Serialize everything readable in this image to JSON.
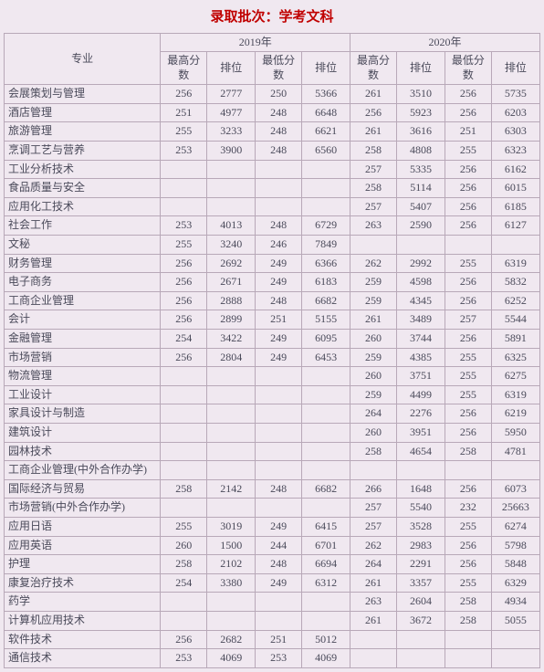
{
  "title": "录取批次：学考文科",
  "header": {
    "major": "专业",
    "year2019": "2019年",
    "year2020": "2020年",
    "max_score": "最高分数",
    "max_rank": "排位",
    "min_score": "最低分数",
    "min_rank": "排位"
  },
  "colors": {
    "title_color": "#c00000",
    "border_color": "#b8a8b8",
    "bg_color": "#f0e8f0",
    "text_color": "#4a4a5a"
  },
  "rows": [
    {
      "major": "会展策划与管理",
      "h19": "256",
      "r19h": "2777",
      "l19": "250",
      "r19l": "5366",
      "h20": "261",
      "r20h": "3510",
      "l20": "256",
      "r20l": "5735"
    },
    {
      "major": "酒店管理",
      "h19": "251",
      "r19h": "4977",
      "l19": "248",
      "r19l": "6648",
      "h20": "256",
      "r20h": "5923",
      "l20": "256",
      "r20l": "6203"
    },
    {
      "major": "旅游管理",
      "h19": "255",
      "r19h": "3233",
      "l19": "248",
      "r19l": "6621",
      "h20": "261",
      "r20h": "3616",
      "l20": "251",
      "r20l": "6303"
    },
    {
      "major": "烹调工艺与营养",
      "h19": "253",
      "r19h": "3900",
      "l19": "248",
      "r19l": "6560",
      "h20": "258",
      "r20h": "4808",
      "l20": "255",
      "r20l": "6323"
    },
    {
      "major": "工业分析技术",
      "h19": "",
      "r19h": "",
      "l19": "",
      "r19l": "",
      "h20": "257",
      "r20h": "5335",
      "l20": "256",
      "r20l": "6162"
    },
    {
      "major": "食品质量与安全",
      "h19": "",
      "r19h": "",
      "l19": "",
      "r19l": "",
      "h20": "258",
      "r20h": "5114",
      "l20": "256",
      "r20l": "6015"
    },
    {
      "major": "应用化工技术",
      "h19": "",
      "r19h": "",
      "l19": "",
      "r19l": "",
      "h20": "257",
      "r20h": "5407",
      "l20": "256",
      "r20l": "6185"
    },
    {
      "major": "社会工作",
      "h19": "253",
      "r19h": "4013",
      "l19": "248",
      "r19l": "6729",
      "h20": "263",
      "r20h": "2590",
      "l20": "256",
      "r20l": "6127"
    },
    {
      "major": "文秘",
      "h19": "255",
      "r19h": "3240",
      "l19": "246",
      "r19l": "7849",
      "h20": "",
      "r20h": "",
      "l20": "",
      "r20l": ""
    },
    {
      "major": "财务管理",
      "h19": "256",
      "r19h": "2692",
      "l19": "249",
      "r19l": "6366",
      "h20": "262",
      "r20h": "2992",
      "l20": "255",
      "r20l": "6319"
    },
    {
      "major": "电子商务",
      "h19": "256",
      "r19h": "2671",
      "l19": "249",
      "r19l": "6183",
      "h20": "259",
      "r20h": "4598",
      "l20": "256",
      "r20l": "5832"
    },
    {
      "major": "工商企业管理",
      "h19": "256",
      "r19h": "2888",
      "l19": "248",
      "r19l": "6682",
      "h20": "259",
      "r20h": "4345",
      "l20": "256",
      "r20l": "6252"
    },
    {
      "major": "会计",
      "h19": "256",
      "r19h": "2899",
      "l19": "251",
      "r19l": "5155",
      "h20": "261",
      "r20h": "3489",
      "l20": "257",
      "r20l": "5544"
    },
    {
      "major": "金融管理",
      "h19": "254",
      "r19h": "3422",
      "l19": "249",
      "r19l": "6095",
      "h20": "260",
      "r20h": "3744",
      "l20": "256",
      "r20l": "5891"
    },
    {
      "major": "市场营销",
      "h19": "256",
      "r19h": "2804",
      "l19": "249",
      "r19l": "6453",
      "h20": "259",
      "r20h": "4385",
      "l20": "255",
      "r20l": "6325"
    },
    {
      "major": "物流管理",
      "h19": "",
      "r19h": "",
      "l19": "",
      "r19l": "",
      "h20": "260",
      "r20h": "3751",
      "l20": "255",
      "r20l": "6275"
    },
    {
      "major": "工业设计",
      "h19": "",
      "r19h": "",
      "l19": "",
      "r19l": "",
      "h20": "259",
      "r20h": "4499",
      "l20": "255",
      "r20l": "6319"
    },
    {
      "major": "家具设计与制造",
      "h19": "",
      "r19h": "",
      "l19": "",
      "r19l": "",
      "h20": "264",
      "r20h": "2276",
      "l20": "256",
      "r20l": "6219"
    },
    {
      "major": "建筑设计",
      "h19": "",
      "r19h": "",
      "l19": "",
      "r19l": "",
      "h20": "260",
      "r20h": "3951",
      "l20": "256",
      "r20l": "5950"
    },
    {
      "major": "园林技术",
      "h19": "",
      "r19h": "",
      "l19": "",
      "r19l": "",
      "h20": "258",
      "r20h": "4654",
      "l20": "258",
      "r20l": "4781"
    },
    {
      "major": "工商企业管理(中外合作办学)",
      "h19": "",
      "r19h": "",
      "l19": "",
      "r19l": "",
      "h20": "",
      "r20h": "",
      "l20": "",
      "r20l": ""
    },
    {
      "major": "国际经济与贸易",
      "h19": "258",
      "r19h": "2142",
      "l19": "248",
      "r19l": "6682",
      "h20": "266",
      "r20h": "1648",
      "l20": "256",
      "r20l": "6073"
    },
    {
      "major": "市场营销(中外合作办学)",
      "h19": "",
      "r19h": "",
      "l19": "",
      "r19l": "",
      "h20": "257",
      "r20h": "5540",
      "l20": "232",
      "r20l": "25663"
    },
    {
      "major": "应用日语",
      "h19": "255",
      "r19h": "3019",
      "l19": "249",
      "r19l": "6415",
      "h20": "257",
      "r20h": "3528",
      "l20": "255",
      "r20l": "6274"
    },
    {
      "major": "应用英语",
      "h19": "260",
      "r19h": "1500",
      "l19": "244",
      "r19l": "6701",
      "h20": "262",
      "r20h": "2983",
      "l20": "256",
      "r20l": "5798"
    },
    {
      "major": "护理",
      "h19": "258",
      "r19h": "2102",
      "l19": "248",
      "r19l": "6694",
      "h20": "264",
      "r20h": "2291",
      "l20": "256",
      "r20l": "5848"
    },
    {
      "major": "康复治疗技术",
      "h19": "254",
      "r19h": "3380",
      "l19": "249",
      "r19l": "6312",
      "h20": "261",
      "r20h": "3357",
      "l20": "255",
      "r20l": "6329"
    },
    {
      "major": "药学",
      "h19": "",
      "r19h": "",
      "l19": "",
      "r19l": "",
      "h20": "263",
      "r20h": "2604",
      "l20": "258",
      "r20l": "4934"
    },
    {
      "major": "计算机应用技术",
      "h19": "",
      "r19h": "",
      "l19": "",
      "r19l": "",
      "h20": "261",
      "r20h": "3672",
      "l20": "258",
      "r20l": "5055"
    },
    {
      "major": "软件技术",
      "h19": "256",
      "r19h": "2682",
      "l19": "251",
      "r19l": "5012",
      "h20": "",
      "r20h": "",
      "l20": "",
      "r20l": ""
    },
    {
      "major": "通信技术",
      "h19": "253",
      "r19h": "4069",
      "l19": "253",
      "r19l": "4069",
      "h20": "",
      "r20h": "",
      "l20": "",
      "r20l": ""
    }
  ]
}
